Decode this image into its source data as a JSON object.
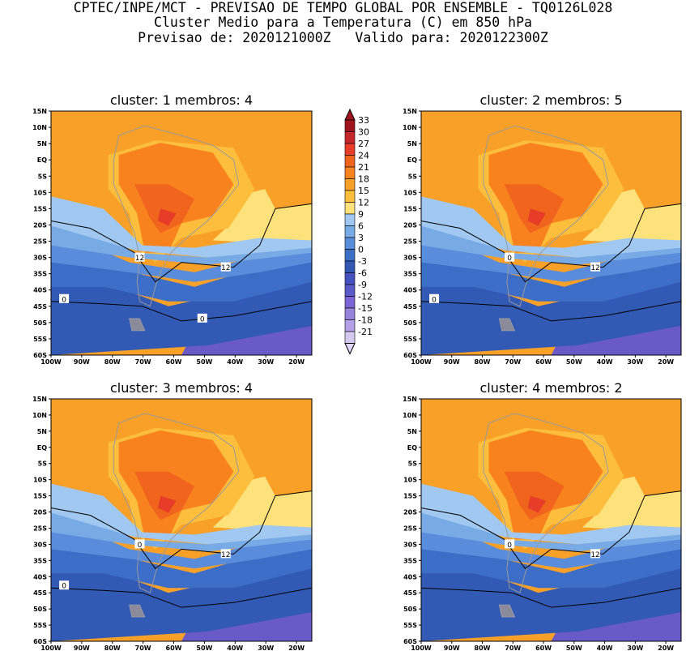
{
  "header": {
    "line1": "CPTEC/INPE/MCT - PREVISAO DE TEMPO GLOBAL POR ENSEMBLE - TQ0126L028",
    "line2": "Cluster Medio para a Temperatura (C) em 850 hPa",
    "line3": "Previsao de: 2020121000Z   Valido para: 2020122300Z"
  },
  "axes": {
    "lat_labels": [
      "15N",
      "10N",
      "5N",
      "EQ",
      "5S",
      "10S",
      "15S",
      "20S",
      "25S",
      "30S",
      "35S",
      "40S",
      "45S",
      "50S",
      "55S",
      "60S"
    ],
    "lon_labels": [
      "100W",
      "90W",
      "80W",
      "70W",
      "60W",
      "50W",
      "40W",
      "30W",
      "20W"
    ]
  },
  "colorbar": {
    "labels": [
      "33",
      "30",
      "27",
      "24",
      "21",
      "18",
      "15",
      "12",
      "9",
      "6",
      "3",
      "0",
      "-3",
      "-6",
      "-9",
      "-12",
      "-15",
      "-18",
      "-21"
    ],
    "colors": [
      "#a0141e",
      "#c8282d",
      "#e63c28",
      "#f0641e",
      "#f8821e",
      "#f8a028",
      "#fcbe3c",
      "#fde17a",
      "#a0c8f0",
      "#78aae6",
      "#5a8cdc",
      "#3c6ec8",
      "#325ab4",
      "#4650be",
      "#5a5ac8",
      "#7864d2",
      "#9682dc",
      "#b4a0e6",
      "#d2c8f0"
    ],
    "top_color": "#a0141e",
    "bottom_color": "#e0d8f6"
  },
  "panels": [
    {
      "title": "cluster: 1   membros: 4",
      "contour_labels": [
        "12",
        "12",
        "0",
        "0"
      ]
    },
    {
      "title": "cluster: 2   membros: 5",
      "contour_labels": [
        "12",
        "0",
        "0"
      ]
    },
    {
      "title": "cluster: 3   membros: 4",
      "contour_labels": [
        "12",
        "0",
        "0"
      ]
    },
    {
      "title": "cluster: 4   membros: 2",
      "contour_labels": [
        "12",
        "0"
      ]
    }
  ],
  "chart_data": {
    "type": "heatmap",
    "variable": "Temperatura (C) em 850 hPa",
    "levels": [
      -21,
      -18,
      -15,
      -12,
      -9,
      -6,
      -3,
      0,
      3,
      6,
      9,
      12,
      15,
      18,
      21,
      24,
      27,
      30,
      33
    ],
    "contour_lines": [
      12,
      0
    ],
    "lat_range": [
      "60S",
      "15N"
    ],
    "lon_range": [
      "100W",
      "15W"
    ]
  }
}
